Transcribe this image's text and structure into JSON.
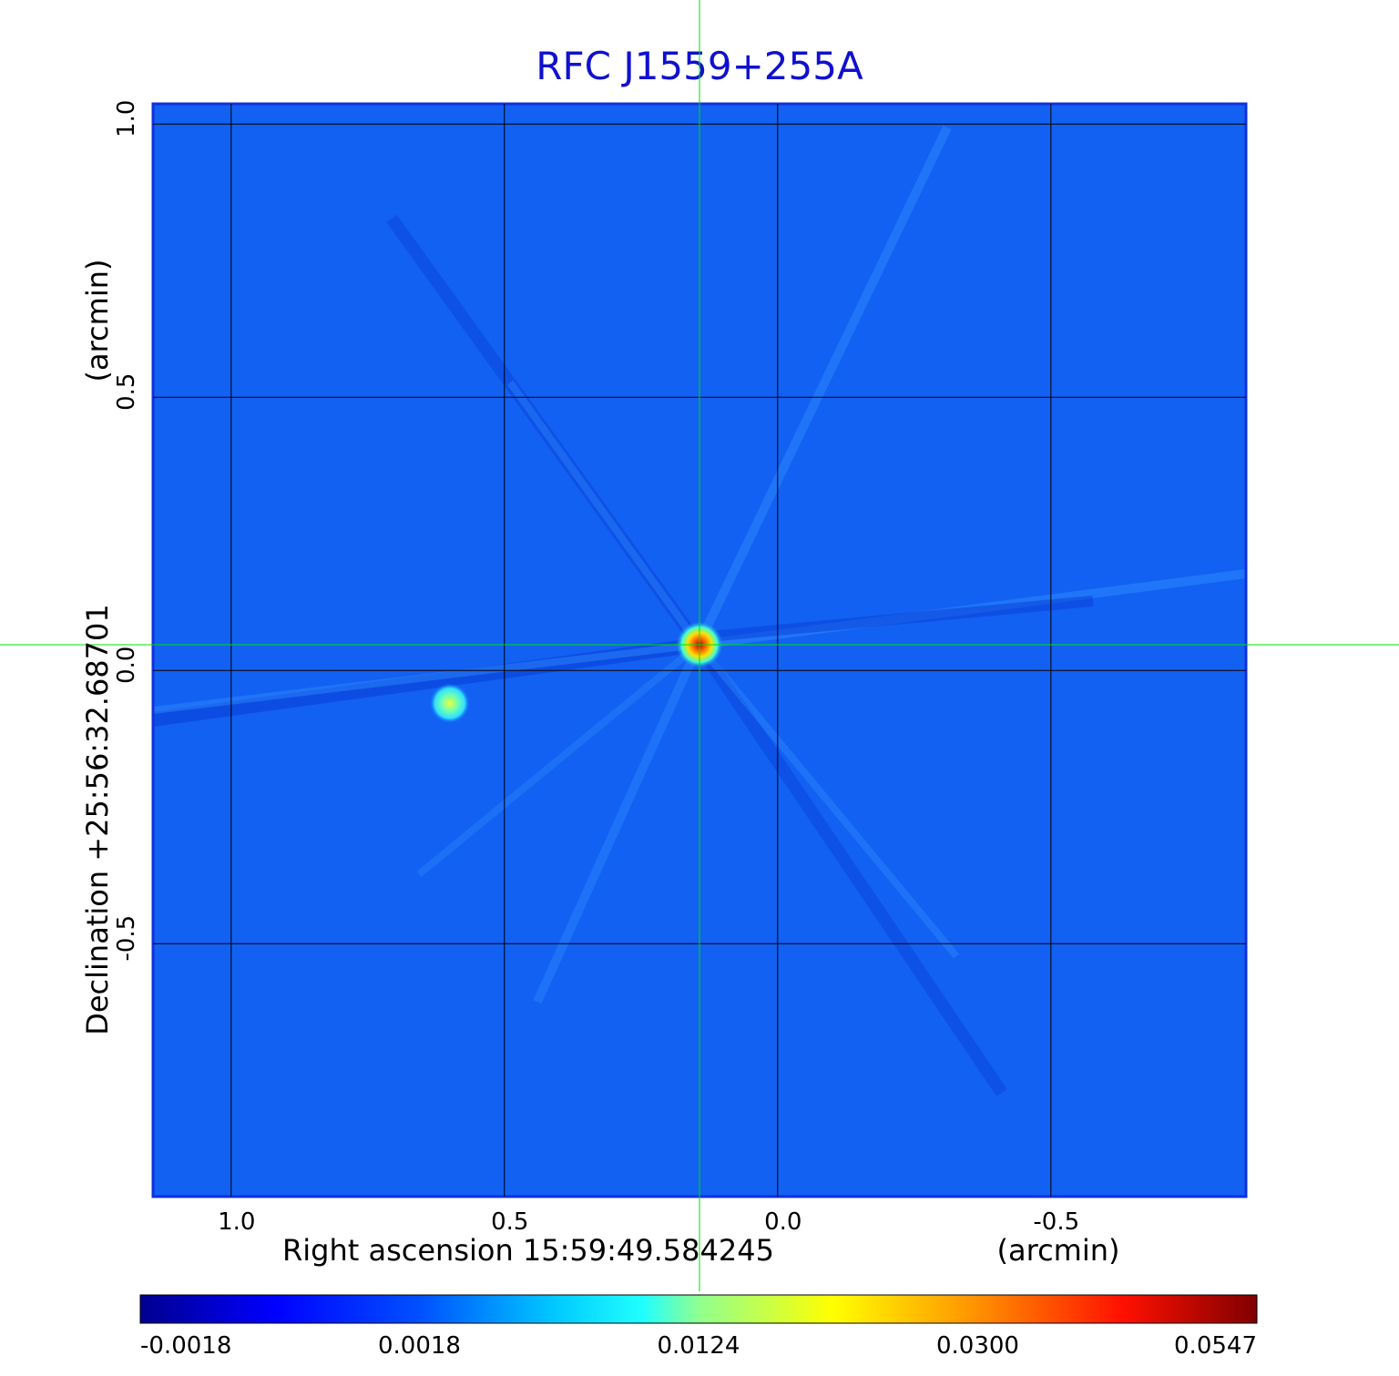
{
  "chart_data": {
    "type": "heatmap",
    "title": "RFC J1559+255A",
    "xlabel": "Right ascension  15:59:49.584245",
    "xunit": "(arcmin)",
    "ylabel": "Declination  +25:56:32.68701",
    "yunit": "(arcmin)",
    "x_ticks": [
      "1.0",
      "0.5",
      "0.0",
      "-0.5"
    ],
    "y_ticks": [
      "1.0",
      "0.5",
      "0.0",
      "-0.5"
    ],
    "x_tick_values": [
      1.0,
      0.5,
      0.0,
      -0.5
    ],
    "y_tick_values": [
      1.0,
      0.5,
      0.0,
      -0.5
    ],
    "xlim": [
      1.143,
      -0.857
    ],
    "ylim": [
      -0.963,
      1.037
    ],
    "grid": true,
    "colormap": "jet",
    "colorbar_ticks": [
      "-0.0018",
      "0.0018",
      "0.0124",
      "0.0300",
      "0.0547"
    ],
    "crosshair": {
      "x": 0.143,
      "y": 0.047,
      "color": "#00e000"
    },
    "sources": [
      {
        "x": 0.143,
        "y": 0.047,
        "peak": 0.0547
      },
      {
        "x": 0.6,
        "y": -0.06,
        "peak": 0.012
      }
    ],
    "background_level": 0.0005
  }
}
